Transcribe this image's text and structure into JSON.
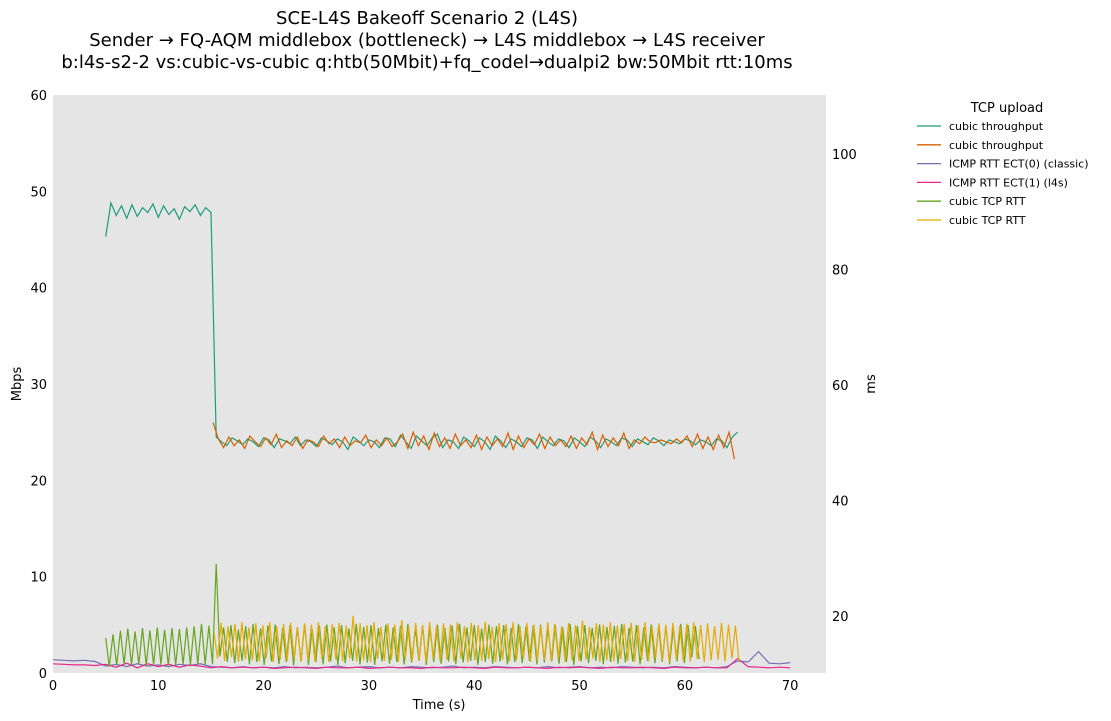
{
  "chart_data": {
    "type": "line",
    "title": [
      "SCE-L4S Bakeoff Scenario 2 (L4S)",
      "Sender → FQ-AQM middlebox (bottleneck) → L4S middlebox → L4S receiver",
      "b:l4s-s2-2 vs:cubic-vs-cubic q:htb(50Mbit)+fq_codel→dualpi2 bw:50Mbit rtt:10ms"
    ],
    "xlabel": "Time (s)",
    "ylabel": "Mbps",
    "y2label": "ms",
    "xlim": [
      0,
      73.4
    ],
    "ylim": [
      0,
      60
    ],
    "y2lim": [
      10.1,
      110.2
    ],
    "xticks": [
      0,
      10,
      20,
      30,
      40,
      50,
      60,
      70
    ],
    "yticks": [
      0,
      10,
      20,
      30,
      40,
      50,
      60
    ],
    "y2ticks": [
      20,
      40,
      60,
      80,
      100
    ],
    "grid": false,
    "legend": {
      "title": "TCP upload",
      "placement": "outside-right"
    },
    "series": [
      {
        "name": "cubic throughput",
        "axis": "left",
        "color": "#1b9e77",
        "x_start": 5,
        "x_step": 0.5,
        "values": [
          45.3,
          48.8,
          47.5,
          48.5,
          47.2,
          48.6,
          47.4,
          48.3,
          47.8,
          48.7,
          47.3,
          48.5,
          47.6,
          48.2,
          47.1,
          48.4,
          47.9,
          48.6,
          47.5,
          48.3,
          47.8,
          24.5,
          24.0,
          23.6,
          24.4,
          24.1,
          23.7,
          24.3,
          24.0,
          23.5,
          24.4,
          24.2,
          23.4,
          24.3,
          24.1,
          23.8,
          24.5,
          23.6,
          24.2,
          24.0,
          23.5,
          24.4,
          24.1,
          23.7,
          24.3,
          24.0,
          23.2,
          24.5,
          24.1,
          23.6,
          24.2,
          24.0,
          23.4,
          24.4,
          24.3,
          23.5,
          24.7,
          24.0,
          23.3,
          24.6,
          24.1,
          23.6,
          24.4,
          24.8,
          23.4,
          24.2,
          24.0,
          23.3,
          24.5,
          24.1,
          23.5,
          24.4,
          24.0,
          23.2,
          24.6,
          24.1,
          23.4,
          24.3,
          24.0,
          23.5,
          24.4,
          24.2,
          23.3,
          24.5,
          24.0,
          23.6,
          24.3,
          24.1,
          23.4,
          24.4,
          24.0,
          23.5,
          24.5,
          24.1,
          23.4,
          24.3,
          24.0,
          23.6,
          24.4,
          24.2,
          23.5,
          24.3,
          24.0,
          23.7,
          24.4,
          24.1,
          23.6,
          24.2,
          24.0,
          23.8,
          24.3,
          24.1,
          23.7,
          24.2,
          24.0,
          23.6,
          24.3,
          24.1,
          23.4,
          24.5,
          25.0
        ]
      },
      {
        "name": "cubic throughput",
        "axis": "left",
        "color": "#d95f02",
        "x_start": 15.2,
        "x_step": 0.5,
        "values": [
          26.0,
          24.3,
          23.4,
          24.5,
          23.6,
          24.2,
          23.3,
          24.6,
          24.0,
          23.5,
          24.4,
          23.7,
          24.8,
          23.4,
          24.1,
          23.6,
          24.5,
          23.3,
          24.2,
          24.0,
          23.5,
          24.6,
          23.8,
          24.3,
          23.4,
          24.5,
          23.6,
          24.1,
          23.9,
          24.7,
          23.4,
          24.2,
          23.6,
          24.4,
          23.5,
          24.0,
          24.8,
          23.3,
          25.0,
          23.6,
          24.6,
          23.2,
          24.9,
          23.5,
          24.4,
          23.3,
          24.8,
          23.6,
          24.2,
          23.4,
          24.7,
          23.2,
          24.5,
          23.6,
          24.3,
          23.5,
          24.9,
          23.2,
          24.6,
          23.4,
          24.3,
          23.7,
          24.8,
          23.3,
          24.5,
          23.6,
          24.2,
          23.5,
          24.6,
          23.3,
          24.4,
          23.7,
          25.0,
          23.2,
          24.7,
          23.5,
          24.4,
          23.6,
          24.9,
          23.3,
          24.2,
          23.8,
          24.5,
          24.0,
          23.9,
          24.2,
          24.0,
          23.8,
          24.3,
          23.9,
          24.6,
          23.5,
          24.8,
          23.3,
          24.5,
          23.2,
          24.7,
          23.4,
          25.0,
          22.2
        ]
      },
      {
        "name": "ICMP RTT ECT(0) (classic)",
        "axis": "right",
        "color": "#7570b3",
        "x_start": 0,
        "x_step": 1,
        "values": [
          12.4,
          12.3,
          12.2,
          12.3,
          12.1,
          11.3,
          11.6,
          11.2,
          11.7,
          11.3,
          11.5,
          11.2,
          11.6,
          11.4,
          11.7,
          11.2,
          11.1,
          11.0,
          11.2,
          11.0,
          11.1,
          11.0,
          11.2,
          11.0,
          11.1,
          11.0,
          11.1,
          11.3,
          11.0,
          11.1,
          11.2,
          11.0,
          11.1,
          11.0,
          11.2,
          11.1,
          11.0,
          11.1,
          11.3,
          11.0,
          11.1,
          11.0,
          11.2,
          11.1,
          11.0,
          11.1,
          11.0,
          11.2,
          11.0,
          11.1,
          11.2,
          11.0,
          11.1,
          11.0,
          11.2,
          11.1,
          11.0,
          11.1,
          11.0,
          11.2,
          11.1,
          11.0,
          11.1,
          11.0,
          11.2,
          12.2,
          12.0,
          13.8,
          11.8,
          11.7,
          11.9
        ]
      },
      {
        "name": "ICMP RTT ECT(1) (l4s)",
        "axis": "right",
        "color": "#e7298a",
        "x_start": 0,
        "x_step": 1,
        "values": [
          11.7,
          11.6,
          11.5,
          11.5,
          11.4,
          11.6,
          11.1,
          11.8,
          11.0,
          11.7,
          11.2,
          11.6,
          11.1,
          11.5,
          11.3,
          11.0,
          11.2,
          11.0,
          11.1,
          11.0,
          11.1,
          10.9,
          11.0,
          11.1,
          11.0,
          10.9,
          11.1,
          11.0,
          11.0,
          11.1,
          10.9,
          11.0,
          11.1,
          11.0,
          11.0,
          10.9,
          11.1,
          11.0,
          11.0,
          11.1,
          11.0,
          10.9,
          11.1,
          11.0,
          11.0,
          11.1,
          11.0,
          10.9,
          11.1,
          11.0,
          11.1,
          11.0,
          10.9,
          11.1,
          11.0,
          11.0,
          11.1,
          11.0,
          10.9,
          11.1,
          11.0,
          11.0,
          11.1,
          11.0,
          11.0,
          12.6,
          11.2,
          11.1,
          11.0,
          11.1,
          11.0
        ]
      },
      {
        "name": "cubic TCP RTT",
        "axis": "right",
        "color": "#66a61e",
        "x_start": 5,
        "x_step": 0.35,
        "values": [
          16.2,
          11.2,
          16.8,
          11.4,
          17.4,
          11.6,
          17.8,
          11.5,
          17.3,
          11.6,
          17.9,
          11.4,
          17.5,
          11.5,
          18.0,
          11.6,
          17.6,
          11.4,
          17.9,
          11.5,
          17.7,
          11.6,
          18.0,
          11.5,
          18.2,
          11.7,
          18.6,
          11.6,
          18.3,
          11.6,
          29.0,
          13.0,
          18.0,
          12.0,
          18.4,
          11.8,
          17.6,
          12.2,
          18.2,
          11.6,
          18.6,
          12.0,
          17.8,
          11.5,
          18.3,
          12.1,
          18.5,
          11.6,
          17.9,
          12.0,
          18.4,
          11.4,
          18.0,
          12.2,
          18.6,
          11.5,
          17.7,
          12.0,
          18.3,
          11.6,
          18.5,
          12.1,
          18.0,
          11.5,
          18.4,
          11.8,
          17.8,
          12.2,
          18.6,
          11.6,
          18.1,
          11.9,
          18.4,
          11.5,
          17.9,
          12.1,
          18.5,
          11.7,
          18.0,
          12.0,
          18.3,
          11.6,
          18.6,
          11.9,
          17.8,
          12.2,
          18.4,
          11.5,
          18.1,
          12.0,
          18.5,
          11.7,
          17.9,
          12.1,
          18.3,
          11.6,
          18.6,
          11.9,
          18.0,
          12.2,
          18.4,
          11.5,
          17.8,
          12.0,
          18.5,
          11.7,
          18.2,
          12.1,
          18.4,
          11.6,
          17.9,
          12.0,
          18.6,
          11.8,
          18.1,
          12.2,
          18.3,
          11.6,
          18.5,
          11.9,
          17.8,
          12.1,
          18.4,
          11.7,
          18.0,
          12.0,
          18.6,
          11.5,
          18.2,
          12.1,
          18.4,
          11.8,
          17.9,
          12.2,
          18.5,
          11.6,
          18.1,
          12.0,
          18.3,
          11.7,
          18.6,
          11.9,
          17.9,
          12.1,
          18.4,
          11.6,
          18.0,
          12.2,
          18.5,
          11.8,
          18.2,
          12.0,
          18.3,
          11.6,
          17.9,
          12.1,
          18.6,
          11.8,
          18.4,
          12.8,
          18.2,
          12.5
        ]
      },
      {
        "name": "cubic TCP RTT",
        "axis": "right",
        "color": "#e6ab02",
        "x_start": 15.3,
        "x_step": 0.33,
        "values": [
          17.0,
          12.6,
          18.8,
          12.2,
          18.2,
          12.8,
          18.6,
          12.0,
          18.9,
          12.5,
          18.0,
          12.3,
          18.7,
          12.1,
          18.4,
          12.7,
          18.9,
          12.0,
          18.2,
          12.4,
          18.6,
          12.2,
          18.8,
          12.6,
          18.1,
          12.0,
          18.7,
          12.3,
          18.5,
          12.1,
          18.9,
          12.5,
          18.2,
          12.0,
          18.6,
          12.4,
          18.8,
          12.2,
          18.3,
          12.6,
          20.0,
          12.1,
          18.7,
          12.3,
          18.4,
          12.0,
          18.9,
          12.5,
          18.1,
          12.2,
          18.7,
          12.4,
          18.5,
          12.0,
          19.3,
          12.6,
          18.2,
          12.1,
          18.8,
          12.3,
          18.4,
          12.0,
          18.9,
          12.5,
          18.3,
          12.2,
          18.7,
          12.4,
          18.5,
          12.1,
          18.9,
          12.6,
          18.2,
          12.0,
          18.8,
          12.3,
          18.4,
          12.2,
          19.0,
          12.5,
          18.1,
          12.0,
          18.7,
          12.4,
          18.6,
          12.1,
          18.9,
          12.3,
          18.2,
          12.6,
          18.8,
          12.0,
          18.5,
          12.2,
          18.3,
          12.4,
          18.9,
          12.1,
          18.6,
          12.5,
          18.2,
          12.0,
          18.8,
          12.3,
          18.4,
          12.2,
          19.2,
          12.4,
          18.1,
          12.6,
          18.7,
          12.0,
          18.5,
          12.3,
          18.9,
          12.1,
          18.3,
          12.5,
          18.6,
          12.2,
          18.8,
          12.0,
          18.4,
          12.4,
          18.9,
          12.1,
          18.2,
          12.6,
          18.7,
          12.3,
          18.5,
          12.0,
          18.8,
          12.4,
          18.3,
          12.2,
          18.6,
          12.1,
          18.9,
          12.5,
          18.4,
          12.0,
          18.7,
          12.3,
          18.2,
          12.4,
          18.8,
          12.1,
          18.5,
          12.6,
          18.3,
          12.2
        ]
      }
    ]
  }
}
